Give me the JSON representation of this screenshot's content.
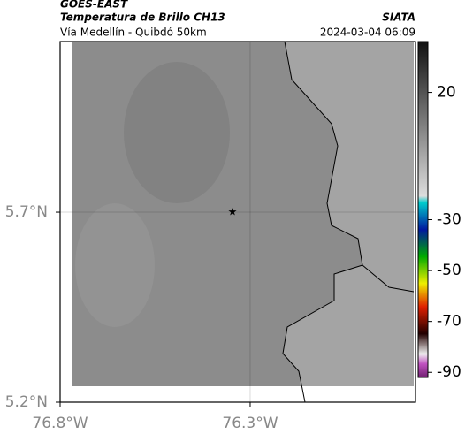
{
  "header": {
    "title": "GOES-EAST",
    "subtitle": "Temperatura de Brillo CH13",
    "route": "Vía Medellín - Quibdó 50km",
    "source": "SIATA",
    "datetime": "2024-03-04 06:09"
  },
  "map": {
    "xlim": [
      -76.8,
      -75.865
    ],
    "ylim": [
      5.2,
      6.149
    ],
    "xticks": [
      {
        "value": -76.8,
        "label": "76.8°W"
      },
      {
        "value": -76.3,
        "label": "76.3°W"
      }
    ],
    "yticks": [
      {
        "value": 5.2,
        "label": "5.2°N"
      },
      {
        "value": 5.7,
        "label": "5.7°N"
      }
    ]
  },
  "colorbar": {
    "lim": [
      -92,
      40
    ],
    "ticks": [
      20,
      -30,
      -50,
      -70,
      -90
    ]
  }
}
